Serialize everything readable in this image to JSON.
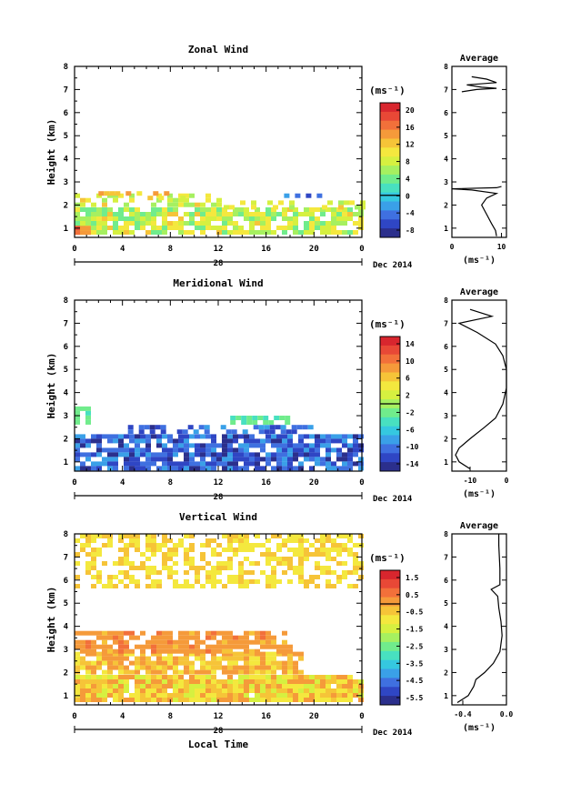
{
  "chart_data": [
    {
      "type": "heatmap",
      "title": "Zonal Wind",
      "ylabel": "Height (km)",
      "xticks": [
        "0",
        "4",
        "8",
        "12",
        "16",
        "20",
        "0"
      ],
      "yticks": [
        "1",
        "2",
        "3",
        "4",
        "5",
        "6",
        "7",
        "8"
      ],
      "date_label": "28",
      "month_label": "Dec 2014",
      "xlim": [
        0,
        24
      ],
      "ylim": [
        0.6,
        8
      ],
      "colorbar": {
        "unit": "(ms⁻¹)",
        "ticks": [
          "20",
          "16",
          "12",
          "8",
          "4",
          "0",
          "-4",
          "-8"
        ],
        "range": [
          -10,
          22
        ]
      },
      "data_extent": {
        "height_top_km": 2.6,
        "note": "mostly 2 to 12 ms⁻¹ below 2.5 km, sparse patches near 2.3-2.6 km"
      },
      "average": {
        "title": "Average",
        "xlabel": "(ms⁻¹)",
        "xticks": [
          "0",
          "10"
        ],
        "xlim": [
          0,
          11
        ],
        "profile": [
          [
            9,
            0.65
          ],
          [
            8.8,
            0.9
          ],
          [
            8,
            1.2
          ],
          [
            7,
            1.6
          ],
          [
            6,
            2.0
          ],
          [
            7,
            2.3
          ],
          [
            9,
            2.5
          ],
          [
            4,
            2.65
          ],
          [
            0,
            2.7
          ],
          [
            9,
            2.75
          ],
          [
            10,
            2.8
          ]
        ],
        "profile_upper": [
          [
            2,
            6.9
          ],
          [
            5,
            7.0
          ],
          [
            9,
            7.05
          ],
          [
            6,
            7.1
          ],
          [
            3,
            7.2
          ],
          [
            9,
            7.3
          ],
          [
            7,
            7.45
          ],
          [
            4,
            7.55
          ]
        ]
      }
    },
    {
      "type": "heatmap",
      "title": "Meridional Wind",
      "ylabel": "Height (km)",
      "xticks": [
        "0",
        "4",
        "8",
        "12",
        "16",
        "20",
        "0"
      ],
      "yticks": [
        "1",
        "2",
        "3",
        "4",
        "5",
        "6",
        "7",
        "8"
      ],
      "date_label": "28",
      "month_label": "Dec 2014",
      "xlim": [
        0,
        24
      ],
      "ylim": [
        0.6,
        8
      ],
      "colorbar": {
        "unit": "(ms⁻¹)",
        "ticks": [
          "14",
          "10",
          "6",
          "2",
          "-2",
          "-6",
          "-10",
          "-14"
        ],
        "range": [
          -16,
          16
        ]
      },
      "data_extent": {
        "height_top_km": 3.4,
        "note": "mostly -8 to -14 ms⁻¹ below 2.5 km, patches of -2 to -4 near 2.6-3.2 km"
      },
      "average": {
        "title": "Average",
        "xlabel": "(ms⁻¹)",
        "xticks": [
          "-10",
          "0"
        ],
        "xlim": [
          -15,
          0
        ],
        "profile": [
          [
            -10,
            0.7
          ],
          [
            -13,
            1.0
          ],
          [
            -14,
            1.3
          ],
          [
            -13,
            1.6
          ],
          [
            -10,
            2.0
          ],
          [
            -6,
            2.5
          ],
          [
            -3,
            2.9
          ],
          [
            -1,
            3.5
          ],
          [
            0,
            4.2
          ],
          [
            0,
            5.0
          ],
          [
            -1,
            5.6
          ],
          [
            -3,
            6.1
          ],
          [
            -8,
            6.6
          ],
          [
            -13,
            7.0
          ],
          [
            -4,
            7.3
          ],
          [
            -10,
            7.6
          ]
        ]
      }
    },
    {
      "type": "heatmap",
      "title": "Vertical Wind",
      "ylabel": "Height (km)",
      "xlabel": "Local Time",
      "xticks": [
        "0",
        "4",
        "8",
        "12",
        "16",
        "20",
        "0"
      ],
      "yticks": [
        "1",
        "2",
        "3",
        "4",
        "5",
        "6",
        "7",
        "8"
      ],
      "date_label": "28",
      "month_label": "Dec 2014",
      "xlim": [
        0,
        24
      ],
      "ylim": [
        0.6,
        8
      ],
      "colorbar": {
        "unit": "(ms⁻¹)",
        "ticks": [
          "1.5",
          "0.5",
          "-0.5",
          "-1.5",
          "-2.5",
          "-3.5",
          "-4.5",
          "-5.5"
        ],
        "range": [
          -6,
          2
        ]
      },
      "data_extent": {
        "note": "about -1 to 0 ms⁻¹ between 0.7 and 3.8 km, near -0.5 to -1 ms⁻¹ in the 5.6-8 km layer"
      },
      "average": {
        "title": "Average",
        "xlabel": "(ms⁻¹)",
        "xticks": [
          "-0.4",
          "0.0"
        ],
        "xlim": [
          -0.5,
          0
        ],
        "profile": [
          [
            -0.45,
            0.7
          ],
          [
            -0.35,
            1.0
          ],
          [
            -0.3,
            1.4
          ],
          [
            -0.28,
            1.7
          ],
          [
            -0.2,
            2.0
          ],
          [
            -0.12,
            2.4
          ],
          [
            -0.06,
            2.9
          ],
          [
            -0.04,
            3.6
          ],
          [
            -0.05,
            4.2
          ],
          [
            -0.07,
            4.8
          ],
          [
            -0.08,
            5.3
          ],
          [
            -0.14,
            5.6
          ],
          [
            -0.06,
            5.8
          ],
          [
            -0.06,
            6.5
          ],
          [
            -0.07,
            7.5
          ],
          [
            -0.07,
            8.0
          ]
        ]
      }
    }
  ],
  "colors": {
    "scale": [
      "#2b2f8c",
      "#2f46c4",
      "#3f70e0",
      "#3aa0e8",
      "#35c8e0",
      "#48e0c0",
      "#70ec8c",
      "#a6f060",
      "#d6f040",
      "#f4e83e",
      "#f6c438",
      "#f59a3a",
      "#f2703a",
      "#e84836",
      "#d8262e"
    ]
  }
}
